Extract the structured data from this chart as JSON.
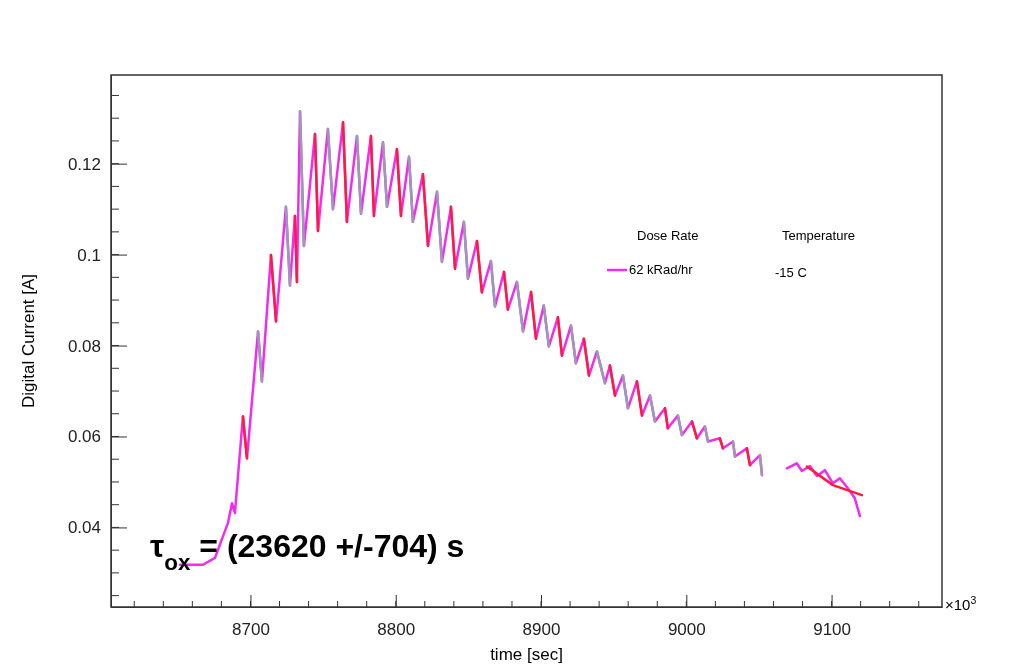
{
  "chart_data": {
    "type": "line",
    "xlabel": "time [sec]",
    "ylabel": "Digital Current [A]",
    "xlim": [
      8604,
      9176
    ],
    "ylim": [
      0.0225,
      0.1395
    ],
    "xticks": [
      8700,
      8800,
      8900,
      9000,
      9100
    ],
    "yticks": [
      0.04,
      0.06,
      0.08,
      {
        "value": 0.1,
        "label": "0.1"
      },
      0.12
    ],
    "grid": false,
    "legend": "top right",
    "legend_title": "Dose Rate",
    "line_style": "solid",
    "marker": "none",
    "x": [
      8651.5,
      8667.3,
      8675.6,
      8684.5,
      8687.3,
      8689.3,
      8694.8,
      8697.6,
      8705.2,
      8707.9,
      8714.1,
      8717.6,
      8724.4,
      8727.2,
      8730.6,
      8732,
      8734.1,
      8736.8,
      8744.4,
      8746.5,
      8753.3,
      8756.8,
      8763.7,
      8766.4,
      8773.3,
      8776.1,
      8782.9,
      8785,
      8791.2,
      8794,
      8800.8,
      8803.6,
      8809.1,
      8811.8,
      8818.7,
      8822.2,
      8828.4,
      8831.8,
      8838,
      8840.8,
      8846.9,
      8849.7,
      8855.9,
      8859.3,
      8865.5,
      8868.3,
      8874.5,
      8877.2,
      8883.4,
      8887.6,
      8893.1,
      8896.5,
      8901.9,
      8905.4,
      8911.6,
      8914.4,
      8920.6,
      8924,
      8929.5,
      8933,
      8938.5,
      8944,
      8947.4,
      8950.9,
      8956.4,
      8959.8,
      8966,
      8969.5,
      8975,
      8978.4,
      8985.3,
      8987.3,
      8994.2,
      8997,
      9003.9,
      9007.3,
      9012.8,
      9014.9,
      9023.1,
      9025.2,
      9032.1,
      9033.5,
      9041.7,
      9043.8,
      9050.7,
      9052.1,
      9060,
      9069.2,
      9076.1,
      9079.6,
      9085.1,
      9089.9,
      9095.4,
      9100.9,
      9105.7,
      9111.2,
      9116,
      9119.5
    ],
    "annotations": [
      "τ$_{ox}$ = (23620 +/-704) s",
      "Temperature",
      "-15 C",
      "×10$^{3}$"
    ],
    "series": [
      {
        "name": "62 kRad/hr",
        "color": "#f02cf0",
        "values": [
          0.0318,
          0.0318,
          0.0333,
          0.041,
          0.0453,
          0.0432,
          0.0644,
          0.0552,
          0.0831,
          0.0721,
          0.0999,
          0.0853,
          0.1105,
          0.0932,
          0.1085,
          0.094,
          0.1315,
          0.1019,
          0.1265,
          0.1052,
          0.1276,
          0.11,
          0.1291,
          0.1072,
          0.1261,
          0.109,
          0.1261,
          0.1085,
          0.1247,
          0.1105,
          0.1232,
          0.1085,
          0.1215,
          0.1072,
          0.1177,
          0.1019,
          0.1138,
          0.0984,
          0.1105,
          0.0969,
          0.1072,
          0.0947,
          0.103,
          0.0917,
          0.0986,
          0.0886,
          0.0962,
          0.0879,
          0.094,
          0.0831,
          0.0918,
          0.0815,
          0.0888,
          0.0798,
          0.0862,
          0.0778,
          0.0844,
          0.0761,
          0.0815,
          0.0734,
          0.0787,
          0.0717,
          0.0756,
          0.069,
          0.0734,
          0.0662,
          0.0721,
          0.0646,
          0.069,
          0.0633,
          0.0662,
          0.0618,
          0.0646,
          0.0603,
          0.0633,
          0.0596,
          0.0622,
          0.0589,
          0.0596,
          0.0574,
          0.0589,
          0.0556,
          0.0574,
          0.0537,
          0.0559,
          0.0515,
          null,
          0.053,
          0.0541,
          0.0524,
          0.0535,
          0.0513,
          0.0526,
          0.0497,
          0.0508,
          0.0486,
          0.0464,
          0.0425
        ]
      },
      {
        "color": "#ff1a40",
        "values": [
          null,
          null,
          null,
          null,
          null,
          null,
          0.0644,
          0.0552,
          null,
          null,
          0.0999,
          0.0853,
          null,
          null,
          0.1085,
          0.094,
          null,
          null,
          0.1265,
          0.1052,
          null,
          null,
          0.1291,
          0.1072,
          null,
          null,
          0.1261,
          0.1085,
          null,
          null,
          0.1232,
          0.1085,
          null,
          null,
          0.1177,
          0.1019,
          null,
          null,
          0.1105,
          0.0969,
          null,
          null,
          0.103,
          0.0917,
          null,
          null,
          0.0962,
          0.0879,
          null,
          null,
          0.0918,
          0.0815,
          null,
          null,
          0.0862,
          0.0778,
          null,
          null,
          0.0815,
          0.0734,
          null,
          null,
          0.0756,
          0.069,
          null,
          null,
          0.0721,
          0.0646,
          null,
          null,
          0.0662,
          0.0618,
          null,
          null,
          0.0633,
          0.0596,
          null,
          null,
          0.0596,
          0.0574,
          null,
          null,
          0.0574,
          0.0537,
          null,
          null,
          null,
          null,
          null,
          null,
          null,
          null,
          null,
          null,
          null,
          null,
          null,
          null
        ]
      },
      {
        "color": "#9a9ab8",
        "values": [
          null,
          null,
          null,
          null,
          null,
          null,
          null,
          null,
          0.0831,
          0.0721,
          null,
          null,
          0.1105,
          0.0932,
          null,
          null,
          0.1315,
          0.1019,
          null,
          null,
          0.1276,
          0.11,
          null,
          null,
          0.1261,
          0.109,
          null,
          null,
          0.1247,
          0.1105,
          null,
          null,
          0.1215,
          0.1072,
          null,
          null,
          0.1138,
          0.0984,
          null,
          null,
          0.1072,
          0.0947,
          null,
          null,
          0.0986,
          0.0886,
          null,
          null,
          0.094,
          0.0831,
          null,
          null,
          0.0888,
          0.0798,
          null,
          null,
          0.0844,
          0.0761,
          null,
          null,
          0.0787,
          0.0717,
          null,
          null,
          0.0734,
          0.0662,
          null,
          null,
          0.069,
          0.0633,
          null,
          null,
          0.0646,
          0.0603,
          null,
          null,
          0.0622,
          0.0589,
          null,
          null,
          0.0589,
          0.0556,
          null,
          null,
          0.0559,
          0.0515,
          null,
          null,
          null,
          null,
          null,
          null,
          null,
          null,
          null,
          null,
          null,
          null
        ]
      },
      {
        "color": "#ff1a40",
        "x": [
          9083,
          9100.9,
          9120.9
        ],
        "values": [
          0.0534,
          0.0493,
          0.0471
        ]
      }
    ]
  }
}
